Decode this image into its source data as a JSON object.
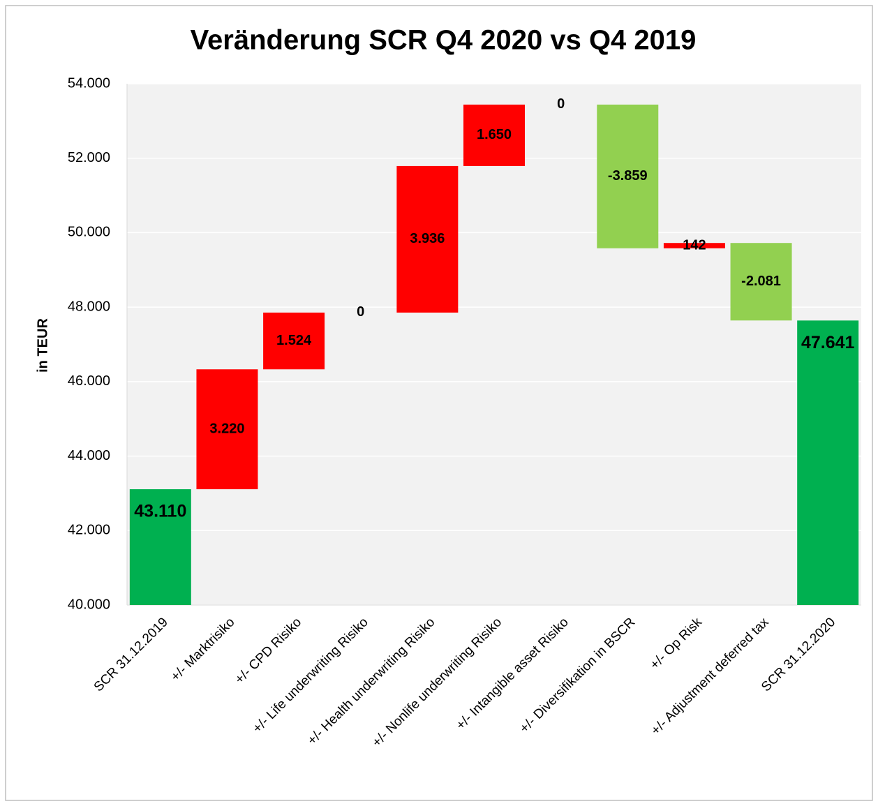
{
  "chart_data": {
    "type": "waterfall",
    "title": "Veränderung SCR Q4 2020 vs Q4 2019",
    "y_label": "in TEUR",
    "categories": [
      "SCR 31.12.2019",
      "+/- Marktrisiko",
      "+/- CPD Risiko",
      "+/- Life underwriting Risiko",
      "+/- Health underwriting Risiko",
      "+/- Nonlife underwriting Risiko",
      "+/- Intangible asset Risiko",
      "+/- Diversifikation in BSCR",
      "+/- Op Risk",
      "+/- Adjustment deferred tax",
      "SCR 31.12.2020"
    ],
    "values": [
      43110,
      3220,
      1524,
      0,
      3936,
      1650,
      0,
      -3859,
      142,
      -2081,
      47641
    ],
    "value_labels": [
      "43.110",
      "3.220",
      "1.524",
      "0",
      "3.936",
      "1.650",
      "0",
      "-3.859",
      "142",
      "-2.081",
      "47.641"
    ],
    "colors": {
      "total": "#00b050",
      "increase": "#ff0000",
      "decrease": "#92d050"
    },
    "ylim": [
      40000,
      54000
    ],
    "yticks": [
      {
        "value": 40000,
        "label": "40.000"
      },
      {
        "value": 42000,
        "label": "42.000"
      },
      {
        "value": 44000,
        "label": "44.000"
      },
      {
        "value": 46000,
        "label": "46.000"
      },
      {
        "value": 48000,
        "label": "48.000"
      },
      {
        "value": 50000,
        "label": "50.000"
      },
      {
        "value": 52000,
        "label": "52.000"
      },
      {
        "value": 54000,
        "label": "54.000"
      }
    ],
    "grid": true
  }
}
